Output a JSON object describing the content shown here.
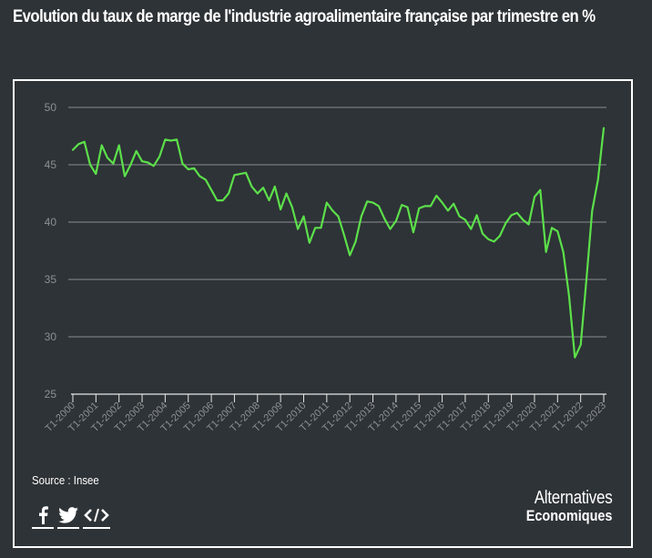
{
  "title": "Evolution du taux de marge de l'industrie agroalimentaire française par trimestre en %",
  "footer": {
    "source": "Source : Insee",
    "share": [
      {
        "name": "facebook-icon",
        "label": "f"
      },
      {
        "name": "twitter-icon",
        "label": "twitter"
      },
      {
        "name": "embed-code-icon",
        "label": "</>"
      }
    ],
    "brand_line1": "Alternatives",
    "brand_line2": "Economiques"
  },
  "colors": {
    "background": "#2e3337",
    "line": "#5ce04a",
    "grid": "#8a8d8f",
    "axis": "#e6e6e6",
    "tick_label": "#8c9093"
  },
  "chart_data": {
    "type": "line",
    "title": "Evolution du taux de marge de l'industrie agroalimentaire française par trimestre en %",
    "xlabel": "",
    "ylabel": "",
    "ylim": [
      25,
      50
    ],
    "yticks": [
      25,
      30,
      35,
      40,
      45,
      50
    ],
    "grid": true,
    "legend": null,
    "x_tick_labels": [
      "T1-2000",
      "T1-2001",
      "T1-2002",
      "T1-2003",
      "T1-2004",
      "T1-2005",
      "T1-2006",
      "T1-2007",
      "T1-2008",
      "T1-2009",
      "T1-2010",
      "T1-2011",
      "T1-2012",
      "T1-2013",
      "T1-2014",
      "T1-2015",
      "T1-2016",
      "T1-2017",
      "T1-2018",
      "T1-2019",
      "T1-2020",
      "T1-2021",
      "T1-2022",
      "T1-2023"
    ],
    "x_start": "T1-2000",
    "x_end": "T1-2023",
    "frequency": "quarterly",
    "series": [
      {
        "name": "Taux de marge (%)",
        "values": [
          46.3,
          46.8,
          47.0,
          45.0,
          44.2,
          46.7,
          45.6,
          45.1,
          46.7,
          44.0,
          45.0,
          46.2,
          45.3,
          45.2,
          44.9,
          45.7,
          47.2,
          47.1,
          47.2,
          45.1,
          44.6,
          44.7,
          44.0,
          43.7,
          42.8,
          41.9,
          41.9,
          42.5,
          44.1,
          44.2,
          44.3,
          43.1,
          42.5,
          43.0,
          41.9,
          43.1,
          41.1,
          42.5,
          41.3,
          39.4,
          40.5,
          38.2,
          39.5,
          39.5,
          41.7,
          41.0,
          40.5,
          38.9,
          37.1,
          38.3,
          40.5,
          41.8,
          41.7,
          41.4,
          40.3,
          39.4,
          40.1,
          41.5,
          41.3,
          39.1,
          41.2,
          41.4,
          41.4,
          42.3,
          41.7,
          41.0,
          41.6,
          40.5,
          40.2,
          39.4,
          40.6,
          39.0,
          38.5,
          38.3,
          38.8,
          39.9,
          40.6,
          40.8,
          40.2,
          39.8,
          42.2,
          42.8,
          37.4,
          39.5,
          39.2,
          37.4,
          33.5,
          28.2,
          29.3,
          35.0,
          41.0,
          43.7,
          48.2
        ]
      }
    ]
  }
}
